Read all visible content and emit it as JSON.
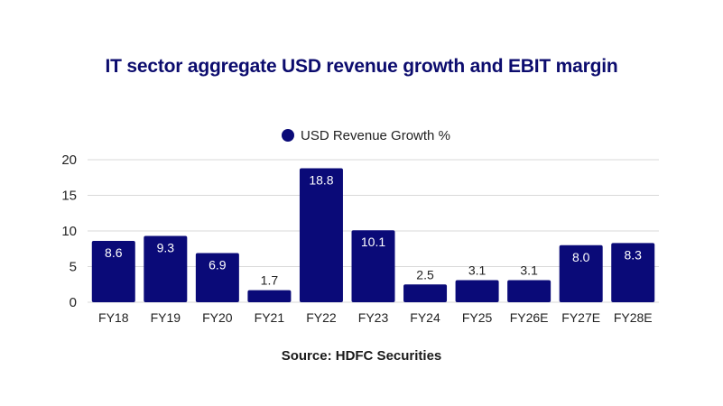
{
  "chart_data": {
    "type": "bar",
    "title": "IT sector aggregate USD revenue growth and EBIT margin",
    "source": "Source: HDFC Securities",
    "xlabel": "",
    "ylabel": "",
    "ylim": [
      0,
      20
    ],
    "yticks": [
      0,
      5,
      10,
      15,
      20
    ],
    "grid": true,
    "legend_position": "top-center",
    "categories": [
      "FY18",
      "FY19",
      "FY20",
      "FY21",
      "FY22",
      "FY23",
      "FY24",
      "FY25",
      "FY26E",
      "FY27E",
      "FY28E"
    ],
    "series": [
      {
        "name": "USD Revenue Growth %",
        "color": "#0a0a78",
        "values": [
          8.6,
          9.3,
          6.9,
          1.7,
          18.8,
          10.1,
          2.5,
          3.1,
          3.1,
          8.0,
          8.3
        ],
        "labels": [
          "8.6",
          "9.3",
          "6.9",
          "1.7",
          "18.8",
          "10.1",
          "2.5",
          "3.1",
          "3.1",
          "8.0",
          "8.3"
        ]
      }
    ]
  }
}
